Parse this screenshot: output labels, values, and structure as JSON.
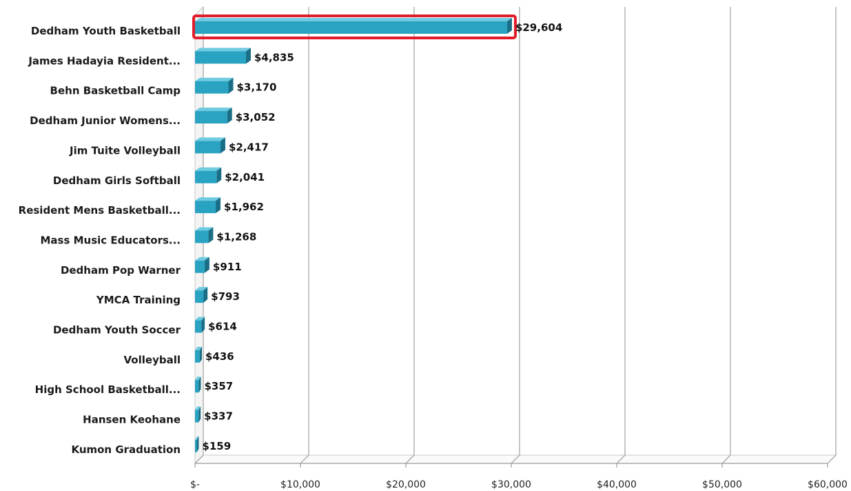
{
  "chart_data": {
    "type": "bar",
    "orientation": "horizontal",
    "title": "",
    "xlabel": "",
    "ylabel": "",
    "categories": [
      "Dedham Youth Basketball",
      "James Hadayia Resident...",
      "Behn Basketball Camp",
      "Dedham Junior Womens...",
      "Jim Tuite Volleyball",
      "Dedham Girls Softball",
      "Resident Mens Basketball...",
      "Mass Music Educators...",
      "Dedham Pop Warner",
      "YMCA Training",
      "Dedham Youth Soccer",
      "Volleyball",
      "High School Basketball...",
      "Hansen Keohane",
      "Kumon Graduation"
    ],
    "values": [
      29604,
      4835,
      3170,
      3052,
      2417,
      2041,
      1962,
      1268,
      911,
      793,
      614,
      436,
      357,
      337,
      159
    ],
    "value_labels": [
      "$29,604",
      "$4,835",
      "$3,170",
      "$3,052",
      "$2,417",
      "$2,041",
      "$1,962",
      "$1,268",
      "$911",
      "$793",
      "$614",
      "$436",
      "$357",
      "$337",
      "$159"
    ],
    "xlim": [
      0,
      60000
    ],
    "x_ticks": [
      0,
      10000,
      20000,
      30000,
      40000,
      50000,
      60000
    ],
    "x_tick_labels": [
      "$-",
      "$10,000",
      "$20,000",
      "$30,000",
      "$40,000",
      "$50,000",
      "$60,000"
    ],
    "grid": true,
    "highlighted_index": 0,
    "colors": {
      "bar_front": "#2aa3c2",
      "bar_top": "#6fcbe0",
      "bar_side": "#1a6f86",
      "highlight_border": "#e21c2a",
      "grid": "#a8a8a8",
      "wall_side": "#c8c8c8"
    }
  }
}
